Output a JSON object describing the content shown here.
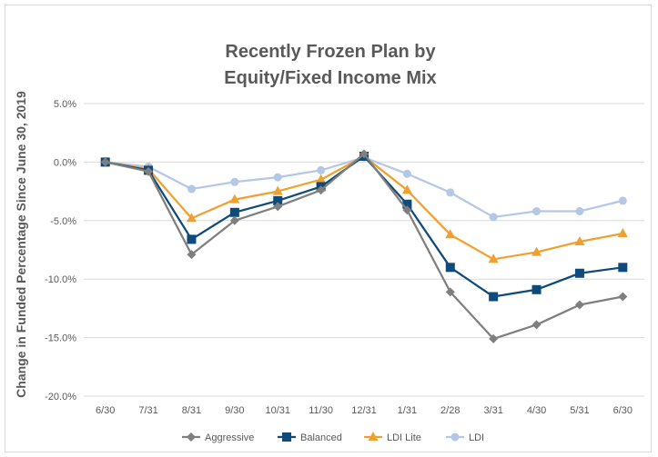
{
  "chart_data": {
    "type": "line",
    "title_lines": [
      "Recently Frozen Plan by",
      "Equity/Fixed Income Mix"
    ],
    "xlabel": "",
    "ylabel": "Change in Funded Percentage Since June 30, 2019",
    "categories": [
      "6/30",
      "7/31",
      "8/31",
      "9/30",
      "10/31",
      "11/30",
      "12/31",
      "1/31",
      "2/28",
      "3/31",
      "4/30",
      "5/31",
      "6/30"
    ],
    "y_ticks": [
      5.0,
      0.0,
      -5.0,
      -10.0,
      -15.0,
      -20.0
    ],
    "y_tick_labels": [
      "5.0%",
      "0.0%",
      "-5.0%",
      "-10.0%",
      "-15.0%",
      "-20.0%"
    ],
    "ylim": [
      -20.0,
      5.0
    ],
    "grid": true,
    "legend_position": "bottom",
    "series": [
      {
        "name": "Aggressive",
        "color": "#7f7f7f",
        "marker": "diamond",
        "values": [
          0.0,
          -0.8,
          -7.9,
          -5.0,
          -3.8,
          -2.4,
          0.7,
          -4.1,
          -11.1,
          -15.1,
          -13.9,
          -12.2,
          -11.5
        ]
      },
      {
        "name": "Balanced",
        "color": "#0e4a7a",
        "marker": "square",
        "values": [
          0.0,
          -0.7,
          -6.6,
          -4.3,
          -3.3,
          -2.1,
          0.5,
          -3.6,
          -9.0,
          -11.5,
          -10.9,
          -9.5,
          -9.0
        ]
      },
      {
        "name": "LDI Lite",
        "color": "#f0a030",
        "marker": "triangle",
        "values": [
          0.0,
          -0.6,
          -4.8,
          -3.2,
          -2.5,
          -1.5,
          0.5,
          -2.4,
          -6.2,
          -8.3,
          -7.7,
          -6.8,
          -6.1
        ]
      },
      {
        "name": "LDI",
        "color": "#b4c7e7",
        "marker": "circle",
        "values": [
          0.0,
          -0.4,
          -2.3,
          -1.7,
          -1.3,
          -0.7,
          0.4,
          -1.0,
          -2.6,
          -4.7,
          -4.2,
          -4.2,
          -3.3
        ]
      }
    ]
  }
}
